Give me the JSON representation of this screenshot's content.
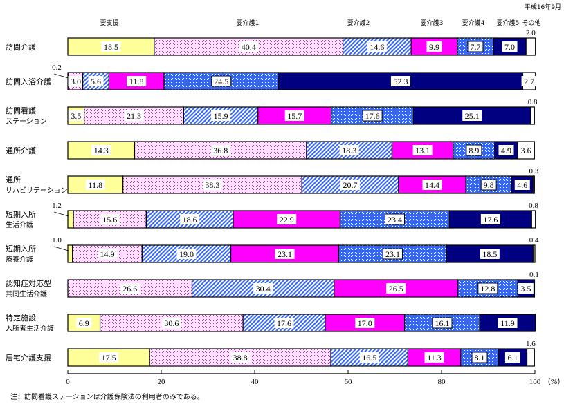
{
  "chart_data": {
    "type": "bar",
    "orientation": "horizontal",
    "stacked": true,
    "date_label": "平成16年9月",
    "categories": [
      [
        "訪問介護"
      ],
      [
        "訪問入浴介護"
      ],
      [
        "訪問看護",
        "ステーション"
      ],
      [
        "通所介護"
      ],
      [
        "通所",
        "リハビリテーション"
      ],
      [
        "短期入所",
        "生活介護"
      ],
      [
        "短期入所",
        "療養介護"
      ],
      [
        "認知症対応型",
        "共同生活介護"
      ],
      [
        "特定施設",
        "入所者生活介護"
      ],
      [
        "居宅介護支援"
      ]
    ],
    "series": [
      {
        "name": "要支援",
        "color": "#ffff99",
        "values": [
          18.5,
          0.2,
          3.5,
          14.3,
          11.8,
          1.2,
          1.0,
          0,
          6.9,
          17.5
        ]
      },
      {
        "name": "要介護1",
        "color": "#ff00ff",
        "values": [
          40.4,
          3.0,
          21.3,
          36.8,
          38.3,
          15.6,
          14.9,
          26.6,
          30.6,
          38.8
        ]
      },
      {
        "name": "要介護2",
        "color": "#3366ff",
        "values": [
          14.6,
          5.6,
          15.9,
          18.3,
          20.7,
          18.6,
          19.0,
          30.4,
          17.6,
          16.5
        ]
      },
      {
        "name": "要介護3",
        "color": "#ff00ff",
        "values": [
          9.9,
          11.8,
          15.7,
          13.1,
          14.4,
          22.9,
          23.1,
          26.5,
          17.0,
          11.3
        ]
      },
      {
        "name": "要介護4",
        "color": "#3366ff",
        "values": [
          7.7,
          24.5,
          17.6,
          8.9,
          9.8,
          23.4,
          23.1,
          12.8,
          16.1,
          8.1
        ]
      },
      {
        "name": "要介護5",
        "color": "#000080",
        "values": [
          7.0,
          52.3,
          25.1,
          4.9,
          4.6,
          17.6,
          18.5,
          3.5,
          11.9,
          6.1
        ]
      },
      {
        "name": "その他",
        "color": "#ffffff",
        "values": [
          2.0,
          2.7,
          0.8,
          3.6,
          0.3,
          0.8,
          0.4,
          0.1,
          0,
          1.6
        ]
      }
    ],
    "labels": [
      [
        "18.5",
        "40.4",
        "14.6",
        "9.9",
        "7.7",
        "7.0",
        "2.0"
      ],
      [
        "0.2",
        "3.0",
        "5.6",
        "11.8",
        "24.5",
        "52.3",
        "2.7"
      ],
      [
        "3.5",
        "21.3",
        "15.9",
        "15.7",
        "17.6",
        "25.1",
        "0.8"
      ],
      [
        "14.3",
        "36.8",
        "18.3",
        "13.1",
        "8.9",
        "4.9",
        "3.6"
      ],
      [
        "11.8",
        "38.3",
        "20.7",
        "14.4",
        "9.8",
        "4.6",
        "0.3"
      ],
      [
        "1.2",
        "15.6",
        "18.6",
        "22.9",
        "23.4",
        "17.6",
        "0.8"
      ],
      [
        "1.0",
        "14.9",
        "19.0",
        "23.1",
        "23.1",
        "18.5",
        "0.4"
      ],
      [
        "",
        "26.6",
        "30.4",
        "26.5",
        "12.8",
        "3.5",
        "0.1"
      ],
      [
        "6.9",
        "30.6",
        "17.6",
        "17.0",
        "16.1",
        "11.9",
        ""
      ],
      [
        "17.5",
        "38.8",
        "16.5",
        "11.3",
        "8.1",
        "6.1",
        "1.6"
      ]
    ],
    "xlim": [
      0,
      100
    ],
    "xticks": [
      "0",
      "20",
      "40",
      "60",
      "80",
      "100"
    ],
    "xunit": "（%）",
    "xlabel": "",
    "ylabel": "",
    "legend": "top"
  },
  "note": "注：訪問看護ステーションは介護保険法の利用者のみである。"
}
